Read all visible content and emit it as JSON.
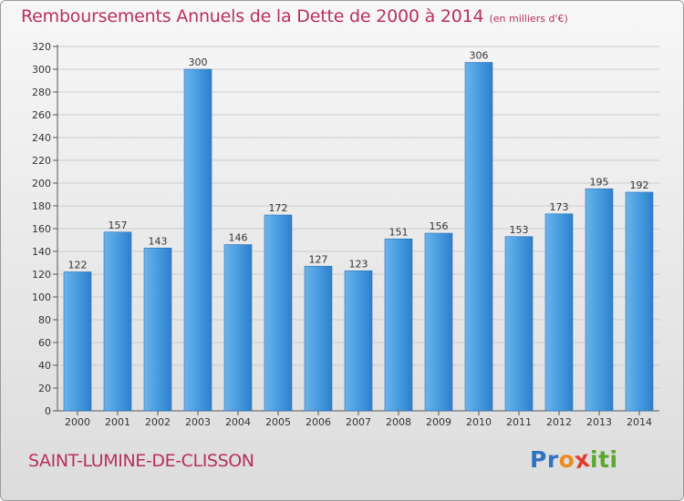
{
  "chart_data": {
    "type": "bar",
    "title": "Remboursements Annuels de la Dette de 2000 à 2014",
    "unit_note": "(en milliers d'€)",
    "categories": [
      "2000",
      "2001",
      "2002",
      "2003",
      "2004",
      "2005",
      "2006",
      "2007",
      "2008",
      "2009",
      "2010",
      "2011",
      "2012",
      "2013",
      "2014"
    ],
    "values": [
      122,
      157,
      143,
      300,
      146,
      172,
      127,
      123,
      151,
      156,
      306,
      153,
      173,
      195,
      192
    ],
    "data_labels": [
      "122",
      "157",
      "143",
      "300",
      "146",
      "172",
      "127",
      "123",
      "151",
      "156",
      "306",
      "153",
      "173",
      "195",
      "192"
    ],
    "y_ticks": [
      0,
      20,
      40,
      60,
      80,
      100,
      120,
      140,
      160,
      180,
      200,
      220,
      240,
      260,
      280,
      300,
      320
    ],
    "ylim": [
      0,
      320
    ],
    "grid": true,
    "bar_color": "#3d8fd8",
    "grid_color": "#cccccc"
  },
  "footer": {
    "commune": "SAINT-LUMINE-DE-CLISSON",
    "logo_letters": [
      {
        "ch": "P",
        "color": "#2f74c4"
      },
      {
        "ch": "r",
        "color": "#2f74c4"
      },
      {
        "ch": "o",
        "color": "#ef8a21"
      },
      {
        "ch": "x",
        "color": "#e23c2c"
      },
      {
        "ch": "i",
        "color": "#5aa832"
      },
      {
        "ch": "t",
        "color": "#5aa832"
      },
      {
        "ch": "i",
        "color": "#5aa832"
      }
    ]
  },
  "theme": {
    "title_color": "#b8305e",
    "axis_text_color": "#333333"
  }
}
